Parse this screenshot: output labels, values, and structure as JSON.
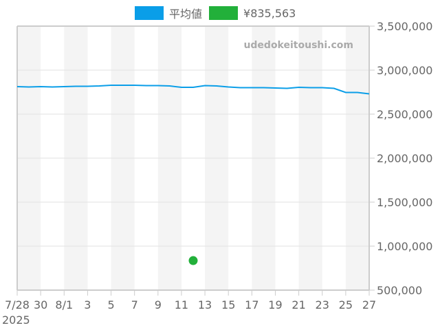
{
  "legend": {
    "items": [
      {
        "label": "平均値",
        "color": "#0a9ee8"
      },
      {
        "label": "¥835,563",
        "color": "#22b03a"
      }
    ]
  },
  "watermark": "udedokeitoushi.com",
  "chart_data": {
    "type": "line",
    "title": "",
    "xlabel": "",
    "ylabel": "",
    "ylim": [
      500000,
      3500000
    ],
    "y_ticks": [
      "3,500,000",
      "3,000,000",
      "2,500,000",
      "2,000,000",
      "1,500,000",
      "1,000,000",
      "500,000"
    ],
    "y_tick_values": [
      3500000,
      3000000,
      2500000,
      2000000,
      1500000,
      1000000,
      500000
    ],
    "x_ticks": [
      "7/28",
      "30",
      "8/1",
      "3",
      "5",
      "7",
      "9",
      "11",
      "13",
      "15",
      "17",
      "19",
      "21",
      "23",
      "25",
      "27"
    ],
    "x_year_label": "2025",
    "x": [
      "7/28",
      "7/29",
      "7/30",
      "7/31",
      "8/1",
      "8/2",
      "8/3",
      "8/4",
      "8/5",
      "8/6",
      "8/7",
      "8/8",
      "8/9",
      "8/10",
      "8/11",
      "8/12",
      "8/13",
      "8/14",
      "8/15",
      "8/16",
      "8/17",
      "8/18",
      "8/19",
      "8/20",
      "8/21",
      "8/22",
      "8/23",
      "8/24",
      "8/25",
      "8/26",
      "8/27"
    ],
    "series": [
      {
        "name": "平均値",
        "color": "#0a9ee8",
        "values": [
          2812500,
          2808600,
          2812500,
          2808600,
          2812500,
          2816400,
          2816400,
          2820300,
          2828100,
          2828100,
          2828100,
          2824200,
          2824200,
          2820300,
          2804700,
          2804700,
          2824200,
          2820300,
          2808600,
          2800800,
          2800800,
          2800800,
          2796900,
          2793000,
          2804700,
          2800800,
          2800800,
          2793000,
          2746100,
          2746100,
          2730500
        ]
      },
      {
        "name": "¥835,563",
        "color": "#22b03a",
        "type": "scatter",
        "points": [
          {
            "x": "8/12",
            "y": 835563
          }
        ]
      }
    ],
    "grid": true,
    "legend_position": "top",
    "alternating_day_bands": true
  }
}
